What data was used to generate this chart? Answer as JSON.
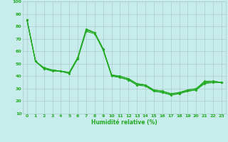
{
  "title": "",
  "xlabel": "Humidité relative (%)",
  "ylabel": "",
  "bg_color": "#c8ecec",
  "grid_color": "#aacccc",
  "grid_minor_color": "#bbdddd",
  "line_color": "#22aa22",
  "marker": "D",
  "markersize": 1.8,
  "linewidth": 0.8,
  "xlim": [
    -0.5,
    23.5
  ],
  "ylim": [
    10,
    100
  ],
  "yticks": [
    10,
    20,
    30,
    40,
    50,
    60,
    70,
    80,
    90,
    100
  ],
  "xticks": [
    0,
    1,
    2,
    3,
    4,
    5,
    6,
    7,
    8,
    9,
    10,
    11,
    12,
    13,
    14,
    15,
    16,
    17,
    18,
    19,
    20,
    21,
    22,
    23
  ],
  "series": [
    [
      85,
      52,
      46,
      45,
      44,
      43,
      55,
      78,
      75,
      62,
      41,
      40,
      38,
      34,
      33,
      29,
      28,
      26,
      27,
      29,
      30,
      36,
      36,
      35
    ],
    [
      85,
      52,
      47,
      45,
      44,
      43,
      54,
      77,
      75,
      62,
      41,
      40,
      38,
      34,
      33,
      29,
      28,
      26,
      26,
      29,
      30,
      35,
      36,
      35
    ],
    [
      85,
      52,
      46,
      45,
      44,
      43,
      55,
      77,
      75,
      61,
      41,
      39,
      37,
      33,
      33,
      28,
      27,
      25,
      26,
      28,
      29,
      35,
      35,
      35
    ],
    [
      85,
      52,
      46,
      44,
      44,
      42,
      54,
      76,
      74,
      61,
      40,
      39,
      37,
      33,
      32,
      28,
      27,
      25,
      26,
      28,
      29,
      34,
      35,
      35
    ]
  ],
  "xlabel_fontsize": 5.5,
  "xlabel_fontweight": "bold",
  "tick_fontsize": 4.5,
  "tick_color": "#22aa22"
}
